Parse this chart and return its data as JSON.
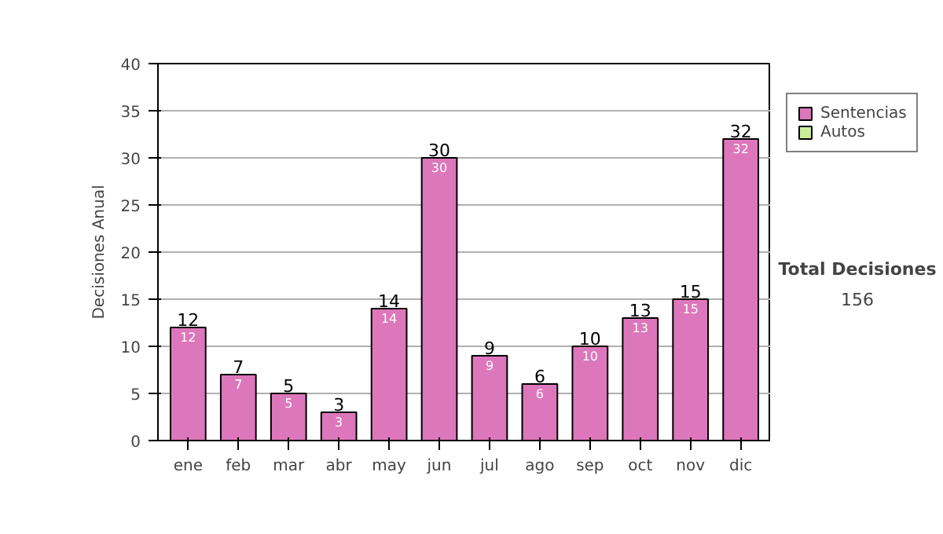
{
  "chart_data": {
    "type": "bar",
    "ylabel": "Decisiones Anual",
    "categories": [
      "ene",
      "feb",
      "mar",
      "abr",
      "may",
      "jun",
      "jul",
      "ago",
      "sep",
      "oct",
      "nov",
      "dic"
    ],
    "series": [
      {
        "name": "Sentencias",
        "color": "#dd77bb",
        "values": [
          12,
          7,
          5,
          3,
          14,
          30,
          9,
          6,
          10,
          13,
          15,
          32
        ]
      },
      {
        "name": "Autos",
        "color": "#ccee99",
        "values": [
          null,
          null,
          null,
          null,
          null,
          null,
          null,
          null,
          null,
          null,
          null,
          null
        ]
      }
    ],
    "stacked": true,
    "data_labels": true,
    "totals": [
      "12",
      "7",
      "5",
      "3",
      "14",
      "30",
      "9",
      "6",
      "10",
      "13",
      "15",
      "32"
    ],
    "ylim": [
      0,
      40
    ],
    "yticks": [
      0,
      5,
      10,
      15,
      20,
      25,
      30,
      35,
      40
    ],
    "grid": "y",
    "legend": "right",
    "annotations": [
      "Total Decisiones",
      "156"
    ]
  }
}
